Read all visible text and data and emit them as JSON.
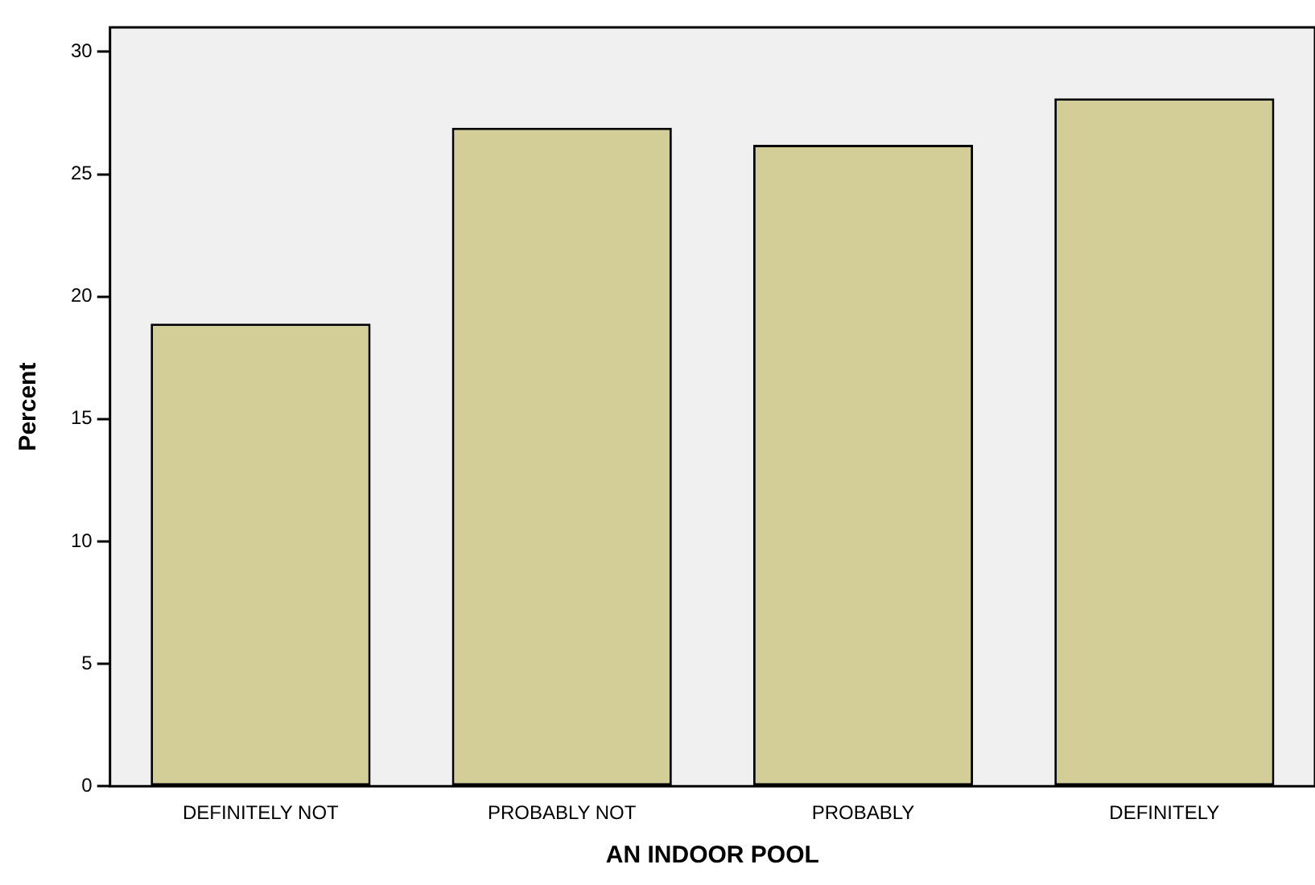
{
  "chart_data": {
    "type": "bar",
    "xlabel": "AN INDOOR POOL",
    "ylabel": "Percent",
    "categories": [
      "DEFINITELY NOT",
      "PROBABLY NOT",
      "PROBABLY",
      "DEFINITELY"
    ],
    "values": [
      18.9,
      26.9,
      26.2,
      28.1
    ],
    "color": "#d3ce97",
    "ylim": [
      0,
      31
    ],
    "yticks": [
      0,
      5,
      10,
      15,
      20,
      25,
      30
    ],
    "grid": false,
    "legend": false
  }
}
